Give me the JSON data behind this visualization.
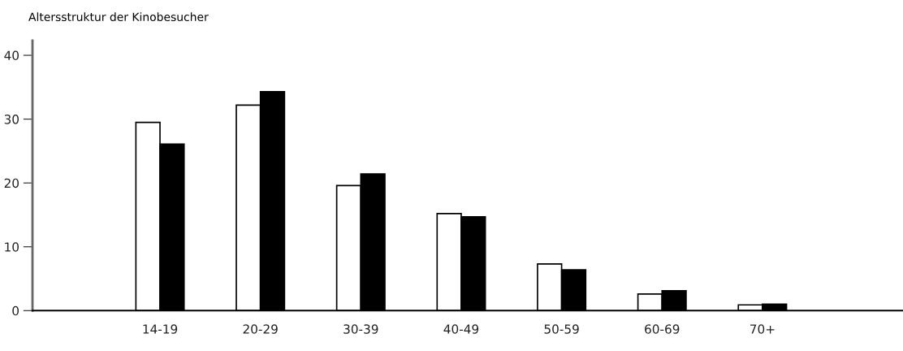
{
  "chart_data": {
    "type": "bar",
    "title": "Altersstruktur der Kinobesucher",
    "categories": [
      "14-19",
      "20-29",
      "30-39",
      "40-49",
      "50-59",
      "60-69",
      "70+"
    ],
    "series": [
      {
        "color": "#ffffff",
        "values": [
          29.5,
          32.2,
          19.6,
          15.2,
          7.3,
          2.6,
          0.9
        ]
      },
      {
        "color": "#000000",
        "values": [
          26.1,
          34.3,
          21.4,
          14.7,
          6.4,
          3.1,
          1.0
        ]
      }
    ],
    "ylim": [
      0,
      42.3
    ],
    "yticks": [
      0,
      10,
      20,
      30,
      40
    ],
    "grid": false
  }
}
